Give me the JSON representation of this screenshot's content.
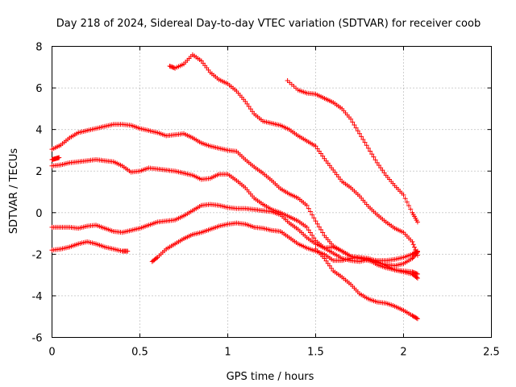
{
  "chart_data": {
    "type": "scatter",
    "title": "Day 218 of 2024, Sidereal Day-to-day VTEC variation (SDTVAR) for receiver coob",
    "xlabel": "GPS time / hours",
    "ylabel": "SDTVAR / TECUs",
    "xlim": [
      0,
      2.5
    ],
    "ylim": [
      -6,
      8
    ],
    "xticks": [
      0,
      0.5,
      1,
      1.5,
      2,
      2.5
    ],
    "xtick_labels": [
      "0",
      "0.5",
      "1",
      "1.5",
      "2",
      "2.5"
    ],
    "yticks": [
      -6,
      -4,
      -2,
      0,
      2,
      4,
      6,
      8
    ],
    "ytick_labels": [
      "-6",
      "-4",
      "-2",
      "0",
      "2",
      "4",
      "6",
      "8"
    ],
    "grid": true,
    "marker": "+",
    "color": "#ff0000",
    "series": [
      {
        "name": "s1",
        "points": [
          [
            0,
            3.05
          ],
          [
            0.05,
            3.25
          ],
          [
            0.1,
            3.6
          ],
          [
            0.15,
            3.85
          ],
          [
            0.2,
            3.95
          ],
          [
            0.25,
            4.05
          ],
          [
            0.3,
            4.15
          ],
          [
            0.35,
            4.25
          ],
          [
            0.4,
            4.25
          ],
          [
            0.45,
            4.2
          ],
          [
            0.5,
            4.05
          ],
          [
            0.55,
            3.95
          ],
          [
            0.6,
            3.85
          ],
          [
            0.65,
            3.7
          ],
          [
            0.7,
            3.75
          ],
          [
            0.75,
            3.8
          ],
          [
            0.8,
            3.6
          ],
          [
            0.85,
            3.35
          ],
          [
            0.9,
            3.2
          ],
          [
            0.95,
            3.1
          ],
          [
            1.0,
            3.0
          ],
          [
            1.05,
            2.95
          ],
          [
            1.1,
            2.55
          ],
          [
            1.15,
            2.2
          ],
          [
            1.2,
            1.9
          ],
          [
            1.25,
            1.55
          ],
          [
            1.3,
            1.15
          ],
          [
            1.35,
            0.9
          ],
          [
            1.4,
            0.7
          ],
          [
            1.45,
            0.35
          ],
          [
            1.5,
            -0.4
          ],
          [
            1.55,
            -1.1
          ],
          [
            1.6,
            -1.6
          ],
          [
            1.65,
            -1.85
          ],
          [
            1.7,
            -2.1
          ],
          [
            1.75,
            -2.2
          ],
          [
            1.8,
            -2.3
          ],
          [
            1.85,
            -2.4
          ],
          [
            1.9,
            -2.5
          ],
          [
            1.95,
            -2.55
          ],
          [
            2.0,
            -2.45
          ],
          [
            2.05,
            -2.2
          ],
          [
            2.08,
            -1.9
          ]
        ]
      },
      {
        "name": "s2",
        "points": [
          [
            0,
            2.25
          ],
          [
            0.05,
            2.3
          ],
          [
            0.1,
            2.4
          ],
          [
            0.15,
            2.45
          ],
          [
            0.2,
            2.5
          ],
          [
            0.25,
            2.55
          ],
          [
            0.3,
            2.5
          ],
          [
            0.35,
            2.45
          ],
          [
            0.4,
            2.25
          ],
          [
            0.45,
            1.95
          ],
          [
            0.5,
            2.0
          ],
          [
            0.55,
            2.15
          ],
          [
            0.6,
            2.1
          ],
          [
            0.65,
            2.05
          ],
          [
            0.7,
            2.0
          ],
          [
            0.75,
            1.9
          ],
          [
            0.8,
            1.8
          ],
          [
            0.85,
            1.6
          ],
          [
            0.9,
            1.65
          ],
          [
            0.95,
            1.85
          ],
          [
            1.0,
            1.85
          ],
          [
            1.05,
            1.55
          ],
          [
            1.1,
            1.2
          ],
          [
            1.15,
            0.7
          ],
          [
            1.2,
            0.4
          ],
          [
            1.25,
            0.15
          ],
          [
            1.3,
            0.0
          ],
          [
            1.35,
            -0.2
          ],
          [
            1.4,
            -0.4
          ],
          [
            1.45,
            -0.7
          ],
          [
            1.5,
            -1.35
          ],
          [
            1.55,
            -1.7
          ],
          [
            1.6,
            -1.95
          ],
          [
            1.65,
            -2.2
          ],
          [
            1.7,
            -2.3
          ],
          [
            1.75,
            -2.35
          ],
          [
            1.8,
            -2.25
          ],
          [
            1.85,
            -2.3
          ],
          [
            1.9,
            -2.3
          ],
          [
            1.95,
            -2.25
          ],
          [
            2.0,
            -2.15
          ],
          [
            2.05,
            -2.0
          ],
          [
            2.08,
            -1.85
          ]
        ]
      },
      {
        "name": "s3",
        "points": [
          [
            0,
            -0.7
          ],
          [
            0.05,
            -0.7
          ],
          [
            0.1,
            -0.7
          ],
          [
            0.15,
            -0.75
          ],
          [
            0.2,
            -0.65
          ],
          [
            0.25,
            -0.6
          ],
          [
            0.3,
            -0.75
          ],
          [
            0.35,
            -0.9
          ],
          [
            0.4,
            -0.95
          ],
          [
            0.45,
            -0.85
          ],
          [
            0.5,
            -0.75
          ],
          [
            0.55,
            -0.6
          ],
          [
            0.6,
            -0.45
          ],
          [
            0.65,
            -0.4
          ],
          [
            0.7,
            -0.35
          ],
          [
            0.75,
            -0.15
          ],
          [
            0.8,
            0.1
          ],
          [
            0.85,
            0.35
          ],
          [
            0.9,
            0.4
          ],
          [
            0.95,
            0.35
          ],
          [
            1.0,
            0.25
          ],
          [
            1.05,
            0.2
          ],
          [
            1.1,
            0.2
          ],
          [
            1.15,
            0.15
          ],
          [
            1.2,
            0.1
          ],
          [
            1.25,
            0.05
          ],
          [
            1.3,
            -0.1
          ],
          [
            1.35,
            -0.5
          ],
          [
            1.4,
            -0.8
          ],
          [
            1.45,
            -1.2
          ],
          [
            1.5,
            -1.5
          ],
          [
            1.55,
            -1.7
          ],
          [
            1.6,
            -1.65
          ],
          [
            1.65,
            -1.85
          ],
          [
            1.7,
            -2.1
          ],
          [
            1.75,
            -2.15
          ],
          [
            1.8,
            -2.25
          ],
          [
            1.85,
            -2.5
          ],
          [
            1.9,
            -2.65
          ],
          [
            1.95,
            -2.75
          ],
          [
            2.0,
            -2.85
          ],
          [
            2.05,
            -2.95
          ],
          [
            2.08,
            -3.15
          ]
        ]
      },
      {
        "name": "s4",
        "points": [
          [
            0,
            -1.8
          ],
          [
            0.05,
            -1.75
          ],
          [
            0.1,
            -1.65
          ],
          [
            0.15,
            -1.5
          ],
          [
            0.2,
            -1.4
          ],
          [
            0.25,
            -1.5
          ],
          [
            0.3,
            -1.65
          ],
          [
            0.35,
            -1.75
          ],
          [
            0.4,
            -1.85
          ],
          [
            0.43,
            -1.85
          ]
        ]
      },
      {
        "name": "s5",
        "points": [
          [
            0.57,
            -2.35
          ],
          [
            0.6,
            -2.15
          ],
          [
            0.65,
            -1.75
          ],
          [
            0.7,
            -1.5
          ],
          [
            0.75,
            -1.25
          ],
          [
            0.8,
            -1.05
          ],
          [
            0.85,
            -0.95
          ],
          [
            0.9,
            -0.8
          ],
          [
            0.95,
            -0.65
          ],
          [
            1.0,
            -0.55
          ],
          [
            1.05,
            -0.5
          ],
          [
            1.1,
            -0.55
          ],
          [
            1.15,
            -0.7
          ],
          [
            1.2,
            -0.75
          ],
          [
            1.25,
            -0.85
          ],
          [
            1.3,
            -0.9
          ],
          [
            1.35,
            -1.2
          ],
          [
            1.4,
            -1.5
          ],
          [
            1.45,
            -1.7
          ],
          [
            1.5,
            -1.85
          ],
          [
            1.55,
            -2.0
          ],
          [
            1.6,
            -2.3
          ],
          [
            1.65,
            -2.3
          ],
          [
            1.7,
            -2.2
          ],
          [
            1.75,
            -2.15
          ],
          [
            1.8,
            -2.2
          ],
          [
            1.85,
            -2.35
          ],
          [
            1.9,
            -2.55
          ],
          [
            1.95,
            -2.75
          ],
          [
            2.0,
            -2.8
          ],
          [
            2.05,
            -2.85
          ],
          [
            2.08,
            -2.95
          ]
        ]
      },
      {
        "name": "s6",
        "points": [
          [
            0.67,
            7.05
          ],
          [
            0.7,
            6.95
          ],
          [
            0.75,
            7.15
          ],
          [
            0.8,
            7.6
          ],
          [
            0.85,
            7.3
          ],
          [
            0.9,
            6.75
          ],
          [
            0.95,
            6.4
          ],
          [
            1.0,
            6.2
          ],
          [
            1.05,
            5.85
          ],
          [
            1.1,
            5.35
          ],
          [
            1.15,
            4.75
          ],
          [
            1.2,
            4.4
          ],
          [
            1.25,
            4.3
          ],
          [
            1.3,
            4.2
          ],
          [
            1.35,
            4.0
          ],
          [
            1.4,
            3.7
          ],
          [
            1.45,
            3.45
          ],
          [
            1.5,
            3.2
          ],
          [
            1.55,
            2.6
          ],
          [
            1.6,
            2.05
          ],
          [
            1.65,
            1.5
          ],
          [
            1.7,
            1.2
          ],
          [
            1.75,
            0.8
          ],
          [
            1.8,
            0.3
          ],
          [
            1.85,
            -0.1
          ],
          [
            1.9,
            -0.45
          ],
          [
            1.95,
            -0.75
          ],
          [
            2.0,
            -0.95
          ],
          [
            2.05,
            -1.4
          ],
          [
            2.08,
            -2.05
          ]
        ]
      },
      {
        "name": "s7",
        "points": [
          [
            1.34,
            6.35
          ],
          [
            1.4,
            5.9
          ],
          [
            1.45,
            5.75
          ],
          [
            1.5,
            5.7
          ],
          [
            1.55,
            5.5
          ],
          [
            1.6,
            5.3
          ],
          [
            1.65,
            5.0
          ],
          [
            1.7,
            4.5
          ],
          [
            1.75,
            3.8
          ],
          [
            1.8,
            3.1
          ],
          [
            1.85,
            2.4
          ],
          [
            1.9,
            1.8
          ],
          [
            1.95,
            1.3
          ],
          [
            2.0,
            0.85
          ],
          [
            2.05,
            0.0
          ],
          [
            2.08,
            -0.45
          ]
        ]
      },
      {
        "name": "s8",
        "points": [
          [
            1.5,
            -1.75
          ],
          [
            1.55,
            -2.2
          ],
          [
            1.6,
            -2.8
          ],
          [
            1.65,
            -3.1
          ],
          [
            1.7,
            -3.45
          ],
          [
            1.75,
            -3.9
          ],
          [
            1.8,
            -4.15
          ],
          [
            1.85,
            -4.3
          ],
          [
            1.9,
            -4.35
          ],
          [
            1.95,
            -4.5
          ],
          [
            2.0,
            -4.7
          ],
          [
            2.05,
            -4.95
          ],
          [
            2.08,
            -5.1
          ]
        ]
      },
      {
        "name": "s9",
        "points": [
          [
            0,
            2.55
          ],
          [
            0.02,
            2.6
          ],
          [
            0.04,
            2.65
          ]
        ]
      }
    ]
  }
}
